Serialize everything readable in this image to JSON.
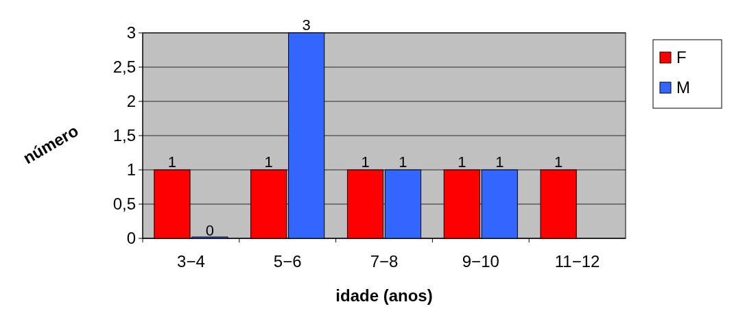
{
  "chart_data": {
    "type": "bar",
    "xlabel": "idade (anos)",
    "ylabel": "número",
    "categories": [
      "3−4",
      "5−6",
      "7−8",
      "9−10",
      "11−12"
    ],
    "series": [
      {
        "name": "F",
        "color": "#ff0000",
        "values": [
          1,
          1,
          1,
          1,
          1
        ]
      },
      {
        "name": "M",
        "color": "#3366ff",
        "values": [
          0,
          3,
          1,
          1,
          null
        ]
      }
    ],
    "ylim": [
      0,
      3
    ],
    "yticks": [
      0,
      {
        "value": 0.5,
        "label": "0,5"
      },
      1,
      {
        "value": 1.5,
        "label": "1,5"
      },
      2,
      {
        "value": 2.5,
        "label": "2,5"
      },
      3
    ],
    "grid": "y",
    "legend": "right",
    "data_labels": true
  }
}
